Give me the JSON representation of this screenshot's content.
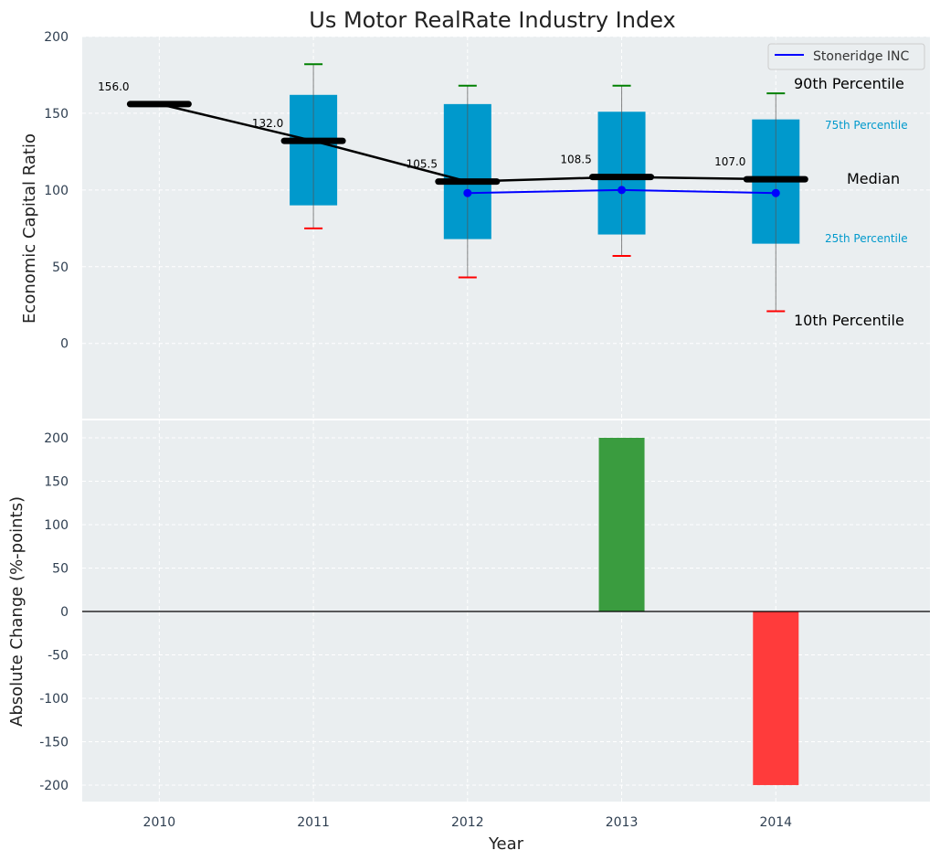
{
  "chart_data": [
    {
      "type": "box",
      "title": "Us Motor RealRate Industry Index",
      "xlabel": "",
      "ylabel": "Economic Capital Ratio",
      "ylim": [
        -49,
        200
      ],
      "xlim": [
        2009.5,
        2015
      ],
      "yticks": [
        0,
        50,
        100,
        150,
        200
      ],
      "grid": true,
      "legend": {
        "placement": "top-right",
        "entries": [
          "Stoneridge INC"
        ]
      },
      "categories": [
        2010,
        2011,
        2012,
        2013,
        2014
      ],
      "p10": [
        null,
        75,
        43,
        57,
        21
      ],
      "p25": [
        null,
        90,
        68,
        71,
        65
      ],
      "median": [
        156.0,
        132.0,
        105.5,
        108.5,
        107.0
      ],
      "median_labels": [
        "156.0",
        "132.0",
        "105.5",
        "108.5",
        "107.0"
      ],
      "p75": [
        null,
        162,
        156,
        151,
        146
      ],
      "p90": [
        null,
        182,
        168,
        168,
        163
      ],
      "series": [
        {
          "name": "Stoneridge INC",
          "x": [
            2012,
            2013,
            2014
          ],
          "values": [
            98,
            100,
            98
          ],
          "color": "#0000ff"
        }
      ],
      "annotations": {
        "p90": "90th Percentile",
        "p75": "75th Percentile",
        "median": "Median",
        "p25": "25th Percentile",
        "p10": "10th Percentile"
      },
      "colors": {
        "box": "#0099cc",
        "p90_cap": "#008000",
        "p10_cap": "#ff0000",
        "median": "#000000",
        "bg": "#eaeef0"
      }
    },
    {
      "type": "bar",
      "xlabel": "Year",
      "ylabel": "Absolute Change (%-points)",
      "ylim": [
        -219,
        220
      ],
      "yticks": [
        -200,
        -150,
        -100,
        -50,
        0,
        50,
        100,
        150,
        200
      ],
      "grid": true,
      "categories": [
        2010,
        2011,
        2012,
        2013,
        2014
      ],
      "values": [
        0,
        0,
        0,
        200,
        -200
      ],
      "colors": {
        "positive": "#3a9c3f",
        "negative": "#ff3b3b"
      }
    }
  ]
}
